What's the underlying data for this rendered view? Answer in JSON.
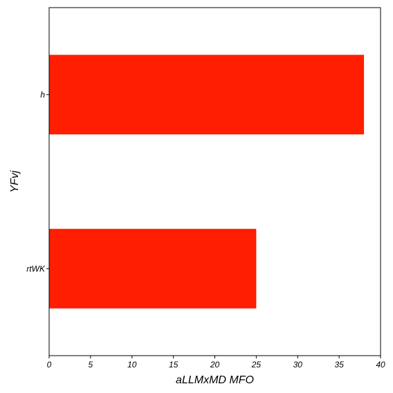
{
  "chart_data": {
    "type": "bar",
    "orientation": "horizontal",
    "categories": [
      "rtWK",
      "h"
    ],
    "values": [
      25,
      38
    ],
    "title": "",
    "xlabel": "aLLMxMD MFO",
    "ylabel": "YFvj",
    "xlim": [
      0,
      40
    ],
    "xticks": [
      0,
      5,
      10,
      15,
      20,
      25,
      30,
      35,
      40
    ],
    "bar_color": "#ff1f00",
    "grid": false,
    "legend": "none"
  }
}
